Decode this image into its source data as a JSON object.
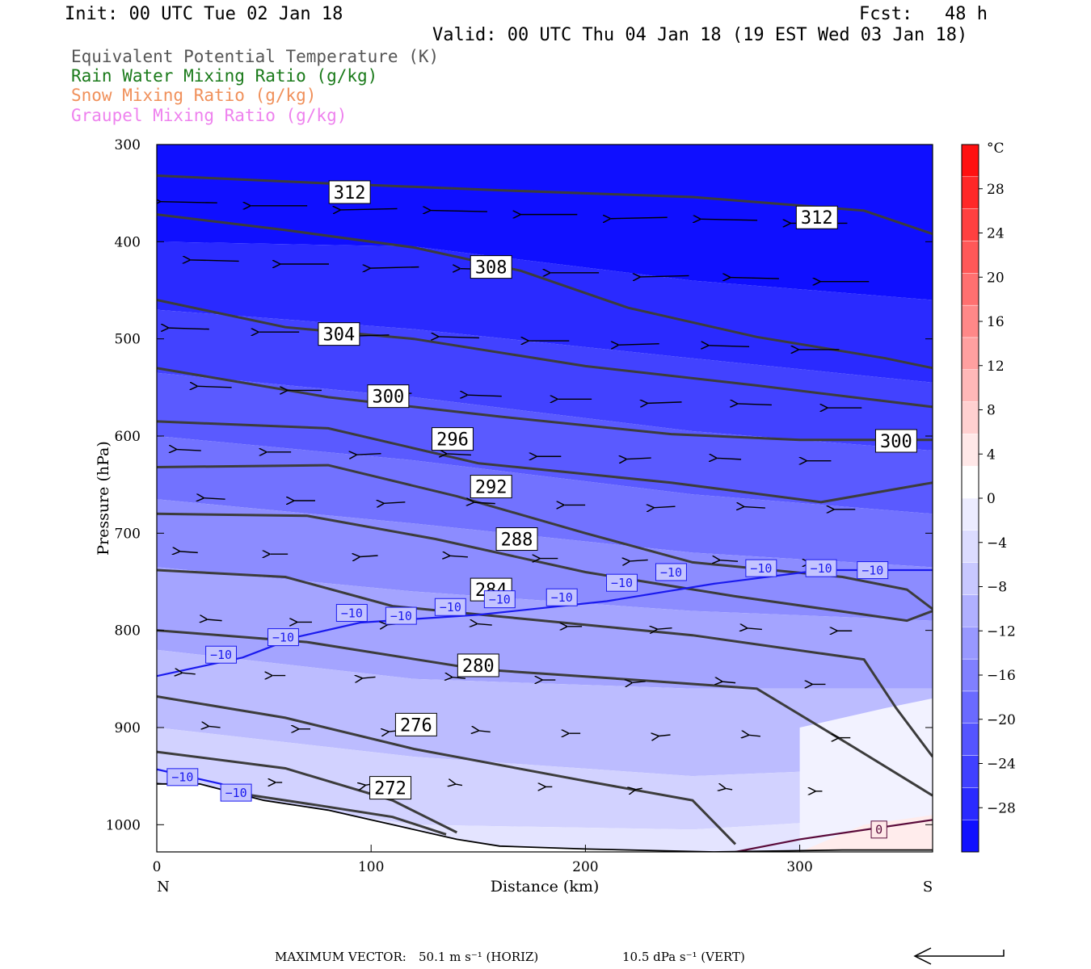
{
  "header": {
    "init": "Init: 00 UTC Tue 02 Jan 18",
    "fcst": "Fcst:   48 h",
    "valid": "Valid: 00 UTC Thu 04 Jan 18 (19 EST Wed 03 Jan 18)"
  },
  "legend": [
    {
      "label": "Equivalent Potential Temperature (K)",
      "color": "#555555"
    },
    {
      "label": "Rain Water Mixing Ratio (g/kg)",
      "color": "#1a7a1a"
    },
    {
      "label": "Snow Mixing Ratio (g/kg)",
      "color": "#f0905a"
    },
    {
      "label": "Graupel Mixing Ratio (g/kg)",
      "color": "#ee82ee"
    }
  ],
  "footer": {
    "max_label": "MAXIMUM VECTOR:",
    "horiz": "50.1 m s⁻¹ (HORIZ)",
    "vert": "10.5 dPa s⁻¹ (VERT)"
  },
  "chart_data": {
    "type": "contour",
    "xlabel": "Distance (km)",
    "ylabel": "Pressure (hPa)",
    "xlim": [
      0,
      362
    ],
    "ylim": [
      1028,
      300
    ],
    "x_ticks": [
      0,
      100,
      200,
      300
    ],
    "y_ticks": [
      300,
      400,
      500,
      600,
      700,
      800,
      900,
      1000
    ],
    "x_end_labels": {
      "left": "N",
      "right": "S"
    },
    "colorbar": {
      "unit": "°C",
      "tick_labels": [
        "28",
        "24",
        "20",
        "16",
        "12",
        "8",
        "4",
        "0",
        "−4",
        "−8",
        "−12",
        "−16",
        "−20",
        "−24",
        "−28"
      ],
      "tick_values": [
        28,
        24,
        20,
        16,
        12,
        8,
        4,
        0,
        -4,
        -8,
        -12,
        -16,
        -20,
        -24,
        -28
      ],
      "range": [
        -32,
        32
      ],
      "colors": [
        "#1010ff",
        "#2a2aff",
        "#4040ff",
        "#5555ff",
        "#6a6aff",
        "#8080ff",
        "#9898ff",
        "#b0b0ff",
        "#c8c8ff",
        "#dcdcff",
        "#ececff",
        "#ffffff",
        "#ffe8e8",
        "#ffd0d0",
        "#ffb8b8",
        "#ffa0a0",
        "#ff8888",
        "#ff7070",
        "#ff5858",
        "#ff4040",
        "#ff2828",
        "#ff1010"
      ]
    },
    "theta_e_contours": [
      {
        "label": "312",
        "points": [
          [
            0,
            332
          ],
          [
            80,
            340
          ],
          [
            160,
            347
          ],
          [
            250,
            354
          ],
          [
            330,
            368
          ],
          [
            362,
            392
          ]
        ],
        "label_at": [
          90,
          349
        ],
        "label_at2": [
          308,
          375
        ]
      },
      {
        "label": "",
        "points": [
          [
            0,
            372
          ],
          [
            60,
            388
          ],
          [
            120,
            406
          ],
          [
            170,
            430
          ],
          [
            220,
            468
          ],
          [
            280,
            498
          ],
          [
            340,
            520
          ],
          [
            362,
            530
          ]
        ]
      },
      {
        "label": "308",
        "points": [
          [
            0,
            460
          ],
          [
            60,
            488
          ],
          [
            120,
            500
          ],
          [
            200,
            528
          ],
          [
            280,
            548
          ],
          [
            362,
            570
          ]
        ],
        "label_at": [
          156,
          426
        ]
      },
      {
        "label": "304",
        "points": [
          [
            0,
            530
          ],
          [
            80,
            560
          ],
          [
            160,
            580
          ],
          [
            240,
            598
          ],
          [
            300,
            604
          ],
          [
            362,
            604
          ]
        ],
        "label_at": [
          85,
          495
        ]
      },
      {
        "label": "300",
        "points": [
          [
            0,
            585
          ],
          [
            80,
            592
          ],
          [
            150,
            628
          ],
          [
            240,
            648
          ],
          [
            310,
            668
          ],
          [
            362,
            648
          ]
        ],
        "label_at": [
          108,
          559
        ],
        "label_at2": [
          345,
          605
        ]
      },
      {
        "label": "296",
        "points": [
          [
            0,
            632
          ],
          [
            80,
            630
          ],
          [
            140,
            662
          ],
          [
            200,
            700
          ],
          [
            250,
            730
          ],
          [
            320,
            745
          ],
          [
            350,
            758
          ],
          [
            362,
            778
          ]
        ],
        "label_at": [
          138,
          603
        ]
      },
      {
        "label": "292",
        "points": [
          [
            0,
            680
          ],
          [
            70,
            682
          ],
          [
            130,
            706
          ],
          [
            200,
            740
          ],
          [
            270,
            765
          ],
          [
            350,
            790
          ],
          [
            362,
            780
          ]
        ],
        "label_at": [
          156,
          652
        ]
      },
      {
        "label": "288",
        "points": [
          [
            0,
            738
          ],
          [
            60,
            745
          ],
          [
            110,
            775
          ],
          [
            180,
            790
          ],
          [
            250,
            805
          ],
          [
            330,
            830
          ],
          [
            345,
            880
          ],
          [
            362,
            930
          ]
        ],
        "label_at": [
          168,
          706
        ]
      },
      {
        "label": "284",
        "points": [
          [
            0,
            800
          ],
          [
            70,
            812
          ],
          [
            150,
            840
          ],
          [
            230,
            852
          ],
          [
            280,
            860
          ],
          [
            325,
            920
          ],
          [
            362,
            970
          ]
        ],
        "label_at": [
          156,
          758
        ]
      },
      {
        "label": "280",
        "points": [
          [
            0,
            868
          ],
          [
            60,
            890
          ],
          [
            120,
            922
          ],
          [
            200,
            955
          ],
          [
            250,
            975
          ],
          [
            270,
            1020
          ]
        ],
        "label_at": [
          150,
          836
        ]
      },
      {
        "label": "276",
        "points": [
          [
            0,
            925
          ],
          [
            60,
            942
          ],
          [
            110,
            975
          ],
          [
            140,
            1008
          ]
        ],
        "label_at": [
          121,
          897
        ]
      },
      {
        "label": "272",
        "points": [
          [
            0,
            958
          ],
          [
            30,
            965
          ],
          [
            75,
            980
          ],
          [
            110,
            992
          ],
          [
            135,
            1010
          ]
        ],
        "label_at": [
          109,
          962
        ]
      }
    ],
    "temperature_contours": [
      {
        "label": "−10",
        "points": [
          [
            0,
            847
          ],
          [
            40,
            828
          ],
          [
            65,
            807
          ],
          [
            95,
            792
          ],
          [
            150,
            784
          ],
          [
            210,
            770
          ],
          [
            260,
            752
          ],
          [
            310,
            738
          ],
          [
            362,
            738
          ]
        ],
        "labels_at": [
          [
            30,
            825
          ],
          [
            59,
            807
          ],
          [
            91,
            782
          ],
          [
            114,
            785
          ],
          [
            137,
            776
          ],
          [
            160,
            768
          ],
          [
            189,
            766
          ],
          [
            217,
            751
          ],
          [
            240,
            740
          ],
          [
            282,
            736
          ],
          [
            310,
            736
          ],
          [
            334,
            738
          ]
        ]
      },
      {
        "label": "−10",
        "points": [
          [
            0,
            943
          ],
          [
            30,
            958
          ],
          [
            58,
            985
          ]
        ],
        "labels_at": [
          [
            12,
            951
          ],
          [
            37,
            967
          ]
        ]
      },
      {
        "label": "0",
        "points": [
          [
            270,
            1028
          ],
          [
            300,
            1015
          ],
          [
            362,
            995
          ]
        ],
        "labels_at": [
          [
            337,
            1005
          ]
        ]
      }
    ],
    "terrain": {
      "points": [
        [
          0,
          958
        ],
        [
          20,
          958
        ],
        [
          50,
          975
        ],
        [
          80,
          985
        ],
        [
          110,
          1000
        ],
        [
          140,
          1015
        ],
        [
          160,
          1022
        ],
        [
          200,
          1025
        ],
        [
          260,
          1028
        ],
        [
          320,
          1026
        ],
        [
          362,
          1026
        ]
      ]
    }
  }
}
